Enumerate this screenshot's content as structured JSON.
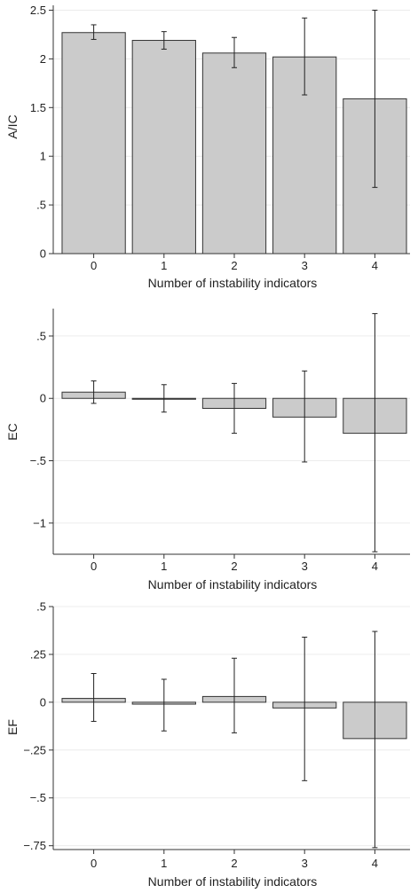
{
  "chart_data": [
    {
      "type": "bar",
      "categories": [
        "0",
        "1",
        "2",
        "3",
        "4"
      ],
      "values": [
        2.27,
        2.19,
        2.06,
        2.02,
        1.59
      ],
      "error_low": [
        2.2,
        2.1,
        1.91,
        1.63,
        0.68
      ],
      "error_high": [
        2.35,
        2.28,
        2.22,
        2.42,
        2.5
      ],
      "xlabel": "Number of instability indicators",
      "ylabel": "A/IC",
      "ylim": [
        0,
        2.55
      ],
      "yticks": [
        0,
        0.5,
        1,
        1.5,
        2,
        2.5
      ],
      "ytick_labels": [
        "0",
        ".5",
        "1",
        "1.5",
        "2",
        "2.5"
      ],
      "grid": true
    },
    {
      "type": "bar",
      "categories": [
        "0",
        "1",
        "2",
        "3",
        "4"
      ],
      "values": [
        0.05,
        0.0,
        -0.08,
        -0.15,
        -0.28
      ],
      "error_low": [
        -0.04,
        -0.11,
        -0.28,
        -0.51,
        -1.23
      ],
      "error_high": [
        0.14,
        0.11,
        0.12,
        0.22,
        0.68
      ],
      "xlabel": "Number of instability indicators",
      "ylabel": "EC",
      "ylim": [
        -1.25,
        0.72
      ],
      "yticks": [
        -1,
        -0.5,
        0,
        0.5
      ],
      "ytick_labels": [
        "−1",
        "−.5",
        "0",
        ".5"
      ],
      "grid": true
    },
    {
      "type": "bar",
      "categories": [
        "0",
        "1",
        "2",
        "3",
        "4"
      ],
      "values": [
        0.02,
        -0.01,
        0.03,
        -0.03,
        -0.19
      ],
      "error_low": [
        -0.1,
        -0.15,
        -0.16,
        -0.41,
        -0.76
      ],
      "error_high": [
        0.15,
        0.12,
        0.23,
        0.34,
        0.37
      ],
      "xlabel": "Number of instability indicators",
      "ylabel": "EF",
      "ylim": [
        -0.77,
        0.5
      ],
      "yticks": [
        -0.75,
        -0.5,
        -0.25,
        0,
        0.25,
        0.5
      ],
      "ytick_labels": [
        "−.75",
        "−.5",
        "−.25",
        "0",
        ".25",
        ".5"
      ],
      "grid": true
    }
  ]
}
